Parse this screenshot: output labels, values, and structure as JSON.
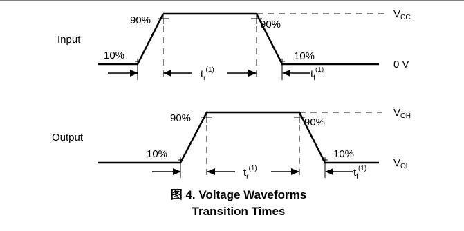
{
  "input": {
    "name": "Input",
    "pct_high_left": "90%",
    "pct_high_right": "90%",
    "pct_low_left": "10%",
    "pct_low_right": "10%",
    "rise": {
      "t": "t",
      "sub": "r",
      "sup": "(1)"
    },
    "fall": {
      "t": "t",
      "sub": "f",
      "sup": "(1)"
    },
    "level_high": {
      "main": "V",
      "sub": "CC"
    },
    "level_low": "0 V"
  },
  "output": {
    "name": "Output",
    "pct_high_left": "90%",
    "pct_high_right": "90%",
    "pct_low_left": "10%",
    "pct_low_right": "10%",
    "rise": {
      "t": "t",
      "sub": "r",
      "sup": "(1)"
    },
    "fall": {
      "t": "t",
      "sub": "f",
      "sup": "(1)"
    },
    "level_high": {
      "main": "V",
      "sub": "OH"
    },
    "level_low": {
      "main": "V",
      "sub": "OL"
    }
  },
  "caption": {
    "line1": "图 4. Voltage Waveforms",
    "line2": "Transition Times"
  }
}
